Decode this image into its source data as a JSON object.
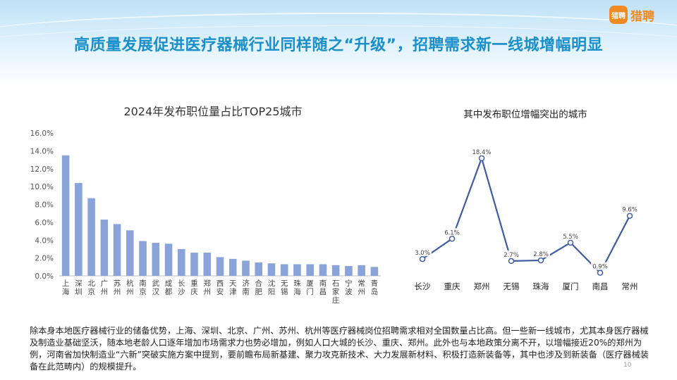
{
  "header": {
    "title": "高质量发展促进医疗器械行业同样随之“升级”，招聘需求新一线城增幅明显",
    "logo_mark": "猎聘",
    "logo_text": "猎聘"
  },
  "colors": {
    "title": "#1b8fc9",
    "bar": "#8aa4d9",
    "line": "#3e5ca3",
    "brand": "#f08a24"
  },
  "chart_data": [
    {
      "type": "bar",
      "title": "2024年发布职位量占比TOP25城市",
      "categories": [
        "上海",
        "深圳",
        "北京",
        "广州",
        "苏州",
        "杭州",
        "南京",
        "武汉",
        "成都",
        "长沙",
        "重庆",
        "郑州",
        "西安",
        "天津",
        "济南",
        "合肥",
        "沈阳",
        "无锡",
        "珠海",
        "厦门",
        "南昌",
        "石家庄",
        "宁波",
        "常州",
        "青岛"
      ],
      "values": [
        13.5,
        10.4,
        8.7,
        6.3,
        5.8,
        5.1,
        3.9,
        3.7,
        3.6,
        3.0,
        2.6,
        2.6,
        2.1,
        1.9,
        1.7,
        1.5,
        1.4,
        1.3,
        1.3,
        1.3,
        1.3,
        1.2,
        1.1,
        1.2,
        1.0
      ],
      "ylim": [
        0,
        16
      ],
      "yticks": [
        "0.0%",
        "2.0%",
        "4.0%",
        "6.0%",
        "8.0%",
        "10.0%",
        "12.0%",
        "14.0%",
        "16.0%"
      ],
      "grid": false,
      "legend": "none"
    },
    {
      "type": "line",
      "title": "其中发布职位增幅突出的城市",
      "categories": [
        "长沙",
        "重庆",
        "郑州",
        "无锡",
        "珠海",
        "厦门",
        "南昌",
        "常州"
      ],
      "values": [
        3.0,
        6.1,
        18.4,
        2.7,
        2.8,
        5.5,
        0.9,
        9.6
      ],
      "labels": [
        "3.0%",
        "6.1%",
        "18.4%",
        "2.7%",
        "2.8%",
        "5.5%",
        "0.9%",
        "9.6%"
      ],
      "ylim": [
        0,
        20
      ],
      "grid": false,
      "legend": "none"
    }
  ],
  "footer": {
    "text": "除本身本地医疗器械行业的储备优势，上海、深圳、北京、广州、苏州、杭州等医疗器械岗位招聘需求相对全国数量占比高。但一些新一线城市，尤其本身医疗器械及制造业基础坚沃，随本地老龄人口逐年增加市场需求力也势必增加，例如人口大城的长沙、重庆、郑州。此外也与本地政策分离不开，以增幅接近20%的郑州为例，河南省加快制造业“六新”突破实施方案中提到，要前瞻布局新基建、聚力攻克新技术、大力发展新材料、积极打造新装备等，其中也涉及到新装备（医疗器械装备在此范畴内）的规模提升。",
    "page_number": "10"
  }
}
